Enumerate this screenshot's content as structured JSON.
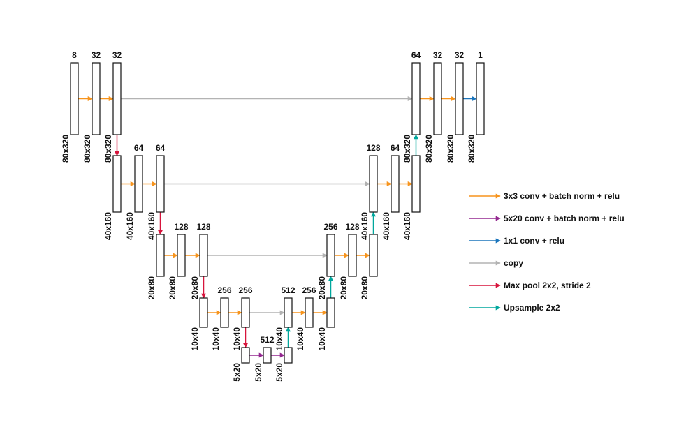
{
  "colors": {
    "conv3": "#f7941d",
    "conv520": "#93278f",
    "conv1": "#1b75bc",
    "copy": "#b3b3b3",
    "pool": "#d7143c",
    "upsample": "#00a79d"
  },
  "blocks": [
    {
      "id": "e1a",
      "channels": "8",
      "size": "80x320"
    },
    {
      "id": "e1b",
      "channels": "32",
      "size": "80x320"
    },
    {
      "id": "e1c",
      "channels": "32",
      "size": "80x320"
    },
    {
      "id": "e2a",
      "channels": "",
      "size": "40x160"
    },
    {
      "id": "e2b",
      "channels": "64",
      "size": "40x160"
    },
    {
      "id": "e2c",
      "channels": "64",
      "size": "40x160"
    },
    {
      "id": "e3a",
      "channels": "",
      "size": "20x80"
    },
    {
      "id": "e3b",
      "channels": "128",
      "size": "20x80"
    },
    {
      "id": "e3c",
      "channels": "128",
      "size": "20x80"
    },
    {
      "id": "e4a",
      "channels": "",
      "size": "10x40"
    },
    {
      "id": "e4b",
      "channels": "256",
      "size": "10x40"
    },
    {
      "id": "e4c",
      "channels": "256",
      "size": "10x40"
    },
    {
      "id": "b1",
      "channels": "",
      "size": "5x20"
    },
    {
      "id": "b2",
      "channels": "512",
      "size": "5x20"
    },
    {
      "id": "b3",
      "channels": "",
      "size": "5x20"
    },
    {
      "id": "d4a",
      "channels": "512",
      "size": "10x40"
    },
    {
      "id": "d4b",
      "channels": "256",
      "size": "10x40"
    },
    {
      "id": "d4c",
      "channels": "",
      "size": "10x40"
    },
    {
      "id": "d3a",
      "channels": "256",
      "size": "20x80"
    },
    {
      "id": "d3b",
      "channels": "128",
      "size": "20x80"
    },
    {
      "id": "d3c",
      "channels": "",
      "size": "20x80"
    },
    {
      "id": "d2a",
      "channels": "128",
      "size": "40x160"
    },
    {
      "id": "d2b",
      "channels": "64",
      "size": "40x160"
    },
    {
      "id": "d2c",
      "channels": "",
      "size": "40x160"
    },
    {
      "id": "d1a",
      "channels": "64",
      "size": "80x320"
    },
    {
      "id": "d1b",
      "channels": "32",
      "size": "80x320"
    },
    {
      "id": "d1c",
      "channels": "32",
      "size": "80x320"
    },
    {
      "id": "d1d",
      "channels": "1",
      "size": "80x320"
    }
  ],
  "arrows": [
    {
      "from": "e1a",
      "to": "e1b",
      "type": "conv3"
    },
    {
      "from": "e1b",
      "to": "e1c",
      "type": "conv3"
    },
    {
      "from": "e1c",
      "to": "e2a",
      "type": "pool"
    },
    {
      "from": "e2a",
      "to": "e2b",
      "type": "conv3"
    },
    {
      "from": "e2b",
      "to": "e2c",
      "type": "conv3"
    },
    {
      "from": "e2c",
      "to": "e3a",
      "type": "pool"
    },
    {
      "from": "e3a",
      "to": "e3b",
      "type": "conv3"
    },
    {
      "from": "e3b",
      "to": "e3c",
      "type": "conv3"
    },
    {
      "from": "e3c",
      "to": "e4a",
      "type": "pool"
    },
    {
      "from": "e4a",
      "to": "e4b",
      "type": "conv3"
    },
    {
      "from": "e4b",
      "to": "e4c",
      "type": "conv3"
    },
    {
      "from": "e4c",
      "to": "b1",
      "type": "pool"
    },
    {
      "from": "b1",
      "to": "b2",
      "type": "conv520"
    },
    {
      "from": "b2",
      "to": "b3",
      "type": "conv520"
    },
    {
      "from": "b3",
      "to": "d4a",
      "type": "upsample"
    },
    {
      "from": "e4c",
      "to": "d4a",
      "type": "copy"
    },
    {
      "from": "d4a",
      "to": "d4b",
      "type": "conv3"
    },
    {
      "from": "d4b",
      "to": "d4c",
      "type": "conv3"
    },
    {
      "from": "d4c",
      "to": "d3a",
      "type": "upsample"
    },
    {
      "from": "e3c",
      "to": "d3a",
      "type": "copy"
    },
    {
      "from": "d3a",
      "to": "d3b",
      "type": "conv3"
    },
    {
      "from": "d3b",
      "to": "d3c",
      "type": "conv3"
    },
    {
      "from": "d3c",
      "to": "d2a",
      "type": "upsample"
    },
    {
      "from": "e2c",
      "to": "d2a",
      "type": "copy"
    },
    {
      "from": "d2a",
      "to": "d2b",
      "type": "conv3"
    },
    {
      "from": "d2b",
      "to": "d2c",
      "type": "conv3"
    },
    {
      "from": "d2c",
      "to": "d1a",
      "type": "upsample"
    },
    {
      "from": "e1c",
      "to": "d1a",
      "type": "copy"
    },
    {
      "from": "d1a",
      "to": "d1b",
      "type": "conv3"
    },
    {
      "from": "d1b",
      "to": "d1c",
      "type": "conv3"
    },
    {
      "from": "d1c",
      "to": "d1d",
      "type": "conv1"
    }
  ],
  "legend": [
    {
      "type": "conv3",
      "label": "3x3 conv + batch norm + relu"
    },
    {
      "type": "conv520",
      "label": "5x20 conv + batch norm + relu"
    },
    {
      "type": "conv1",
      "label": "1x1 conv + relu"
    },
    {
      "type": "copy",
      "label": "copy"
    },
    {
      "type": "pool",
      "label": "Max pool 2x2, stride 2"
    },
    {
      "type": "upsample",
      "label": "Upsample 2x2"
    }
  ]
}
